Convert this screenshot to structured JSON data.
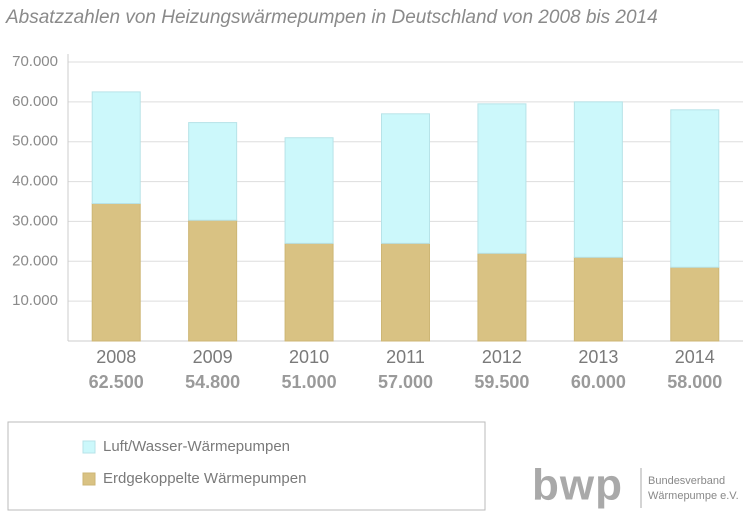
{
  "chart_data": {
    "type": "stacked_bar",
    "title": "Absatzzahlen von Heizungswärmepumpen in Deutschland von 2008 bis 2014",
    "categories": [
      "2008",
      "2009",
      "2010",
      "2011",
      "2012",
      "2013",
      "2014"
    ],
    "series": [
      {
        "name": "Luft/Wasser-Wärmepumpen",
        "color": "#ccf8fb",
        "values": [
          28000,
          24500,
          26500,
          32500,
          37500,
          39000,
          39500
        ]
      },
      {
        "name": "Erdgekoppelte Wärmepumpen",
        "color": "#d9c283",
        "values": [
          34500,
          30300,
          24500,
          24500,
          22000,
          21000,
          18500
        ]
      }
    ],
    "totals": {
      "values": [
        62500,
        54800,
        51000,
        57000,
        59500,
        60000,
        58000
      ],
      "value_labels": [
        "62.500",
        "54.800",
        "51.000",
        "57.000",
        "59.500",
        "60.000",
        "58.000"
      ]
    },
    "ylim": [
      0,
      70000
    ],
    "yticks": [
      {
        "value": 10000,
        "label": "10.000"
      },
      {
        "value": 20000,
        "label": "20.000"
      },
      {
        "value": 30000,
        "label": "30.000"
      },
      {
        "value": 40000,
        "label": "40.000"
      },
      {
        "value": 50000,
        "label": "50.000"
      },
      {
        "value": 60000,
        "label": "60.000"
      },
      {
        "value": 70000,
        "label": "70.000"
      }
    ],
    "grid": true
  },
  "logo": {
    "mark": "bwp",
    "line1": "Bundesverband",
    "line2": "Wärmepumpe e.V."
  }
}
